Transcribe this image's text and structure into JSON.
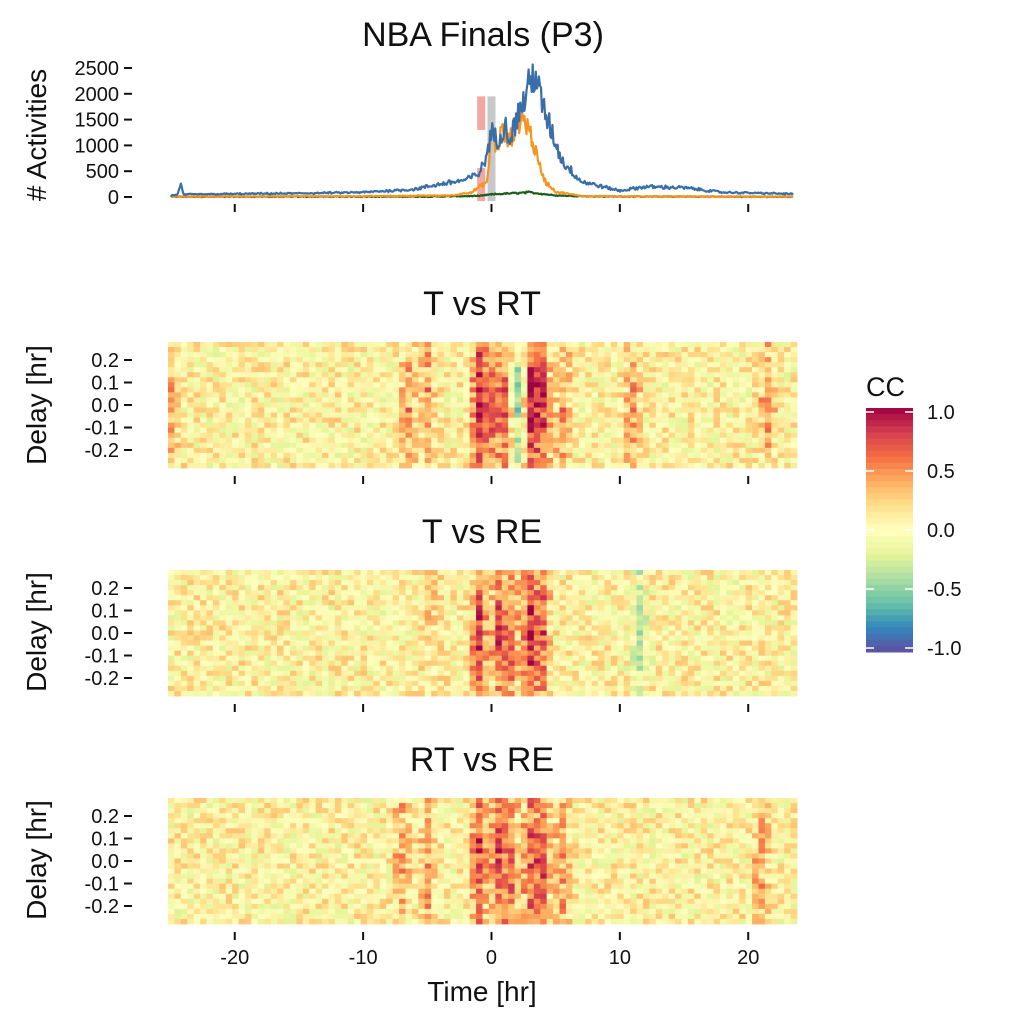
{
  "chart_data": [
    {
      "type": "line",
      "title": "NBA Finals (P3)",
      "xlabel": "",
      "ylabel": "# Activities",
      "xlim": [
        -25.2,
        23.8
      ],
      "ylim": [
        0,
        2500
      ],
      "xticks": [
        -20,
        -10,
        0,
        10,
        20
      ],
      "yticks": [
        0,
        500,
        1000,
        1500,
        2000,
        2500
      ],
      "ytick_labels": [
        "0",
        "500",
        "1000",
        "1500",
        "2000",
        "2500"
      ],
      "grid": false,
      "annotations": [
        {
          "kind": "bar",
          "color": "#f4a6a0",
          "x": -0.8,
          "y_range": [
            1300,
            1950
          ]
        },
        {
          "kind": "bar",
          "color": "#f4a6a0",
          "x": -0.8,
          "y_range": [
            -80,
            560
          ]
        },
        {
          "kind": "bar",
          "color": "#c8c8c8",
          "x": 0.0,
          "y_range": [
            -80,
            1950
          ]
        }
      ],
      "series": [
        {
          "color": "#3a6ea8",
          "points": [
            [
              -25,
              30
            ],
            [
              -24.5,
              40
            ],
            [
              -24.2,
              230
            ],
            [
              -24,
              50
            ],
            [
              -20,
              60
            ],
            [
              -15,
              70
            ],
            [
              -10,
              90
            ],
            [
              -6,
              150
            ],
            [
              -4,
              250
            ],
            [
              -2,
              330
            ],
            [
              -1,
              450
            ],
            [
              -0.5,
              700
            ],
            [
              0,
              1250
            ],
            [
              0.5,
              1100
            ],
            [
              1,
              1400
            ],
            [
              1.5,
              1150
            ],
            [
              2,
              1550
            ],
            [
              2.5,
              1850
            ],
            [
              3,
              2200
            ],
            [
              3.4,
              2450
            ],
            [
              3.8,
              1900
            ],
            [
              4.5,
              1400
            ],
            [
              5.5,
              700
            ],
            [
              7,
              300
            ],
            [
              10,
              120
            ],
            [
              12,
              200
            ],
            [
              15,
              180
            ],
            [
              18,
              90
            ],
            [
              20,
              80
            ],
            [
              23.5,
              60
            ]
          ]
        },
        {
          "color": "#f7931e",
          "points": [
            [
              -25,
              10
            ],
            [
              -10,
              15
            ],
            [
              -3,
              30
            ],
            [
              -1.5,
              100
            ],
            [
              -0.3,
              300
            ],
            [
              0,
              1350
            ],
            [
              0.4,
              900
            ],
            [
              0.8,
              1300
            ],
            [
              1.3,
              1050
            ],
            [
              1.8,
              1300
            ],
            [
              2.3,
              1550
            ],
            [
              2.8,
              1400
            ],
            [
              3.2,
              1100
            ],
            [
              3.6,
              700
            ],
            [
              4.2,
              300
            ],
            [
              5,
              100
            ],
            [
              7,
              20
            ],
            [
              10,
              10
            ],
            [
              23.5,
              5
            ]
          ]
        },
        {
          "color": "#1a5e1a",
          "points": [
            [
              -25,
              5
            ],
            [
              -5,
              8
            ],
            [
              -1,
              20
            ],
            [
              0,
              50
            ],
            [
              1.5,
              70
            ],
            [
              3,
              90
            ],
            [
              4,
              60
            ],
            [
              5,
              30
            ],
            [
              8,
              10
            ],
            [
              23.5,
              5
            ]
          ]
        }
      ]
    },
    {
      "type": "heatmap",
      "title": "T vs RT",
      "ylabel": "Delay [hr]",
      "xlim": [
        -25.2,
        23.8
      ],
      "ylim": [
        -0.28,
        0.28
      ],
      "xticks": [
        -20,
        -10,
        0,
        10,
        20
      ],
      "yticks": [
        -0.2,
        -0.1,
        0.0,
        0.1,
        0.2
      ],
      "ytick_labels": [
        "-0.2",
        "-0.1",
        "0.0",
        "0.1",
        "0.2"
      ],
      "n_time_bins": 98,
      "n_delay_bins": 25,
      "value_range": [
        -1.0,
        1.0
      ],
      "features": [
        {
          "x": -1,
          "strength": 0.85
        },
        {
          "x": 0,
          "strength": 0.5
        },
        {
          "x": 1,
          "strength": 0.6
        },
        {
          "x": 2.2,
          "strength": -0.6
        },
        {
          "x": 3,
          "strength": 0.95
        },
        {
          "x": 4,
          "strength": 0.7
        },
        {
          "x": 5.5,
          "strength": 0.45
        },
        {
          "x": -5,
          "strength": 0.45
        },
        {
          "x": -6.5,
          "strength": 0.4
        },
        {
          "x": -25,
          "strength": 0.4
        },
        {
          "x": 11,
          "strength": 0.45
        },
        {
          "x": 21.5,
          "strength": 0.45
        }
      ]
    },
    {
      "type": "heatmap",
      "title": "T vs RE",
      "ylabel": "Delay [hr]",
      "xlim": [
        -25.2,
        23.8
      ],
      "ylim": [
        -0.28,
        0.28
      ],
      "xticks": [
        -20,
        -10,
        0,
        10,
        20
      ],
      "yticks": [
        -0.2,
        -0.1,
        0.0,
        0.1,
        0.2
      ],
      "ytick_labels": [
        "-0.2",
        "-0.1",
        "0.0",
        "0.1",
        "0.2"
      ],
      "n_time_bins": 98,
      "n_delay_bins": 25,
      "value_range": [
        -1.0,
        1.0
      ],
      "features": [
        {
          "x": -1,
          "strength": 0.8
        },
        {
          "x": 0.5,
          "strength": 0.6
        },
        {
          "x": 1.5,
          "strength": 0.55
        },
        {
          "x": 3,
          "strength": 0.85
        },
        {
          "x": 4,
          "strength": 0.6
        },
        {
          "x": -4.5,
          "strength": 0.3
        },
        {
          "x": 11.5,
          "strength": -0.4
        }
      ]
    },
    {
      "type": "heatmap",
      "title": "RT vs RE",
      "xlabel": "Time [hr]",
      "ylabel": "Delay [hr]",
      "xlim": [
        -25.2,
        23.8
      ],
      "ylim": [
        -0.28,
        0.28
      ],
      "xticks": [
        -20,
        -10,
        0,
        10,
        20
      ],
      "xtick_labels": [
        "-20",
        "-10",
        "0",
        "10",
        "20"
      ],
      "yticks": [
        -0.2,
        -0.1,
        0.0,
        0.1,
        0.2
      ],
      "ytick_labels": [
        "-0.2",
        "-0.1",
        "0.0",
        "0.1",
        "0.2"
      ],
      "n_time_bins": 98,
      "n_delay_bins": 25,
      "value_range": [
        -1.0,
        1.0
      ],
      "features": [
        {
          "x": -1,
          "strength": 0.8
        },
        {
          "x": 0.5,
          "strength": 0.6
        },
        {
          "x": 1.5,
          "strength": 0.6
        },
        {
          "x": 3,
          "strength": 0.7
        },
        {
          "x": 4,
          "strength": 0.6
        },
        {
          "x": 5.5,
          "strength": 0.45
        },
        {
          "x": -5,
          "strength": 0.4
        },
        {
          "x": -7,
          "strength": 0.4
        },
        {
          "x": 21,
          "strength": 0.4
        }
      ]
    }
  ],
  "legend": {
    "title": "CC",
    "placement": "right",
    "range": [
      -1.0,
      1.0
    ],
    "ticks": [
      1.0,
      0.5,
      0.0,
      -0.5,
      -1.0
    ],
    "tick_labels": [
      "1.0",
      "0.5",
      "0.0",
      "-0.5",
      "-1.0"
    ],
    "colors": [
      "#9e0142",
      "#d53e4f",
      "#f46d43",
      "#fdae61",
      "#fee08b",
      "#ffffbf",
      "#e6f598",
      "#abdda4",
      "#66c2a5",
      "#3288bd",
      "#5e4fa2"
    ]
  }
}
